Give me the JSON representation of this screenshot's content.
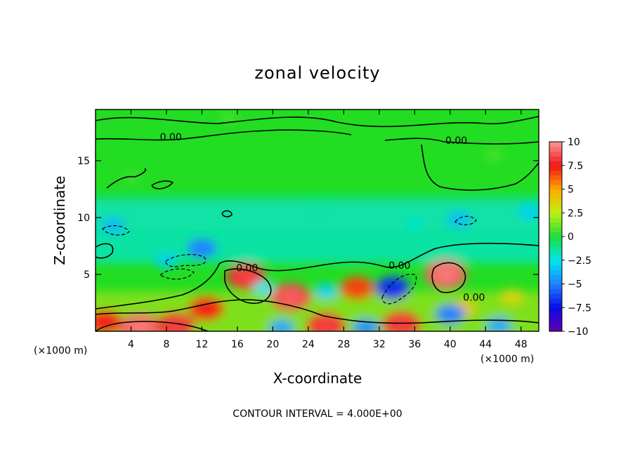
{
  "chart_data": {
    "type": "heatmap",
    "title": "zonal velocity",
    "xlabel": "X-coordinate",
    "ylabel": "Z-coordinate",
    "x_unit": "(×1000 m)",
    "caption": "CONTOUR INTERVAL = 4.000E+00",
    "xlim": [
      0,
      50
    ],
    "ylim": [
      0,
      19.5
    ],
    "x_ticks": [
      4,
      8,
      12,
      16,
      20,
      24,
      28,
      32,
      36,
      40,
      44,
      48
    ],
    "x_tick_labels": [
      "4",
      "8",
      "12",
      "16",
      "20",
      "24",
      "28",
      "32",
      "36",
      "40",
      "44",
      "48"
    ],
    "y_ticks": [
      5,
      10,
      15
    ],
    "y_tick_labels": [
      "5",
      "10",
      "15"
    ],
    "colorbar": {
      "min": -10,
      "max": 10,
      "tick_values": [
        10,
        7.5,
        5,
        2.5,
        0,
        -2.5,
        -5,
        -7.5,
        -10
      ],
      "tick_labels": [
        "10",
        "7.5",
        "5",
        "2.5",
        "0",
        "−2.5",
        "−5",
        "−7.5",
        "−10"
      ]
    },
    "contour_interval": 4,
    "contour_labels": [
      {
        "text": "0.00",
        "x": 8.5,
        "z": 17.1
      },
      {
        "text": "0.00",
        "x": 40.7,
        "z": 16.8
      },
      {
        "text": "0.00",
        "x": 17.1,
        "z": 5.6
      },
      {
        "text": "0.00",
        "x": 34.3,
        "z": 5.8
      },
      {
        "text": "0.00",
        "x": 42.7,
        "z": 3.0
      }
    ],
    "features": [
      {
        "x": 5.0,
        "z": 0.3,
        "value": 9.0
      },
      {
        "x": 9.0,
        "z": 0.5,
        "value": 8.0
      },
      {
        "x": 12.5,
        "z": 2.0,
        "value": 7.0
      },
      {
        "x": 1.0,
        "z": 0.8,
        "value": 7.0
      },
      {
        "x": 17.0,
        "z": 4.8,
        "value": 8.0
      },
      {
        "x": 22.0,
        "z": 3.0,
        "value": 8.5
      },
      {
        "x": 26.0,
        "z": 0.5,
        "value": 8.0
      },
      {
        "x": 29.5,
        "z": 3.8,
        "value": 6.5
      },
      {
        "x": 34.5,
        "z": 0.6,
        "value": 8.0
      },
      {
        "x": 39.5,
        "z": 5.0,
        "value": 9.0
      },
      {
        "x": 41.5,
        "z": 2.0,
        "value": 4.0
      },
      {
        "x": 47.0,
        "z": 3.0,
        "value": 3.5
      },
      {
        "x": 33.5,
        "z": 3.8,
        "value": -6.5
      },
      {
        "x": 12.0,
        "z": 7.3,
        "value": -5.0
      },
      {
        "x": 8.0,
        "z": 6.2,
        "value": -3.0
      },
      {
        "x": 2.0,
        "z": 9.3,
        "value": -3.5
      },
      {
        "x": 21.0,
        "z": 0.3,
        "value": -4.0
      },
      {
        "x": 30.5,
        "z": 0.3,
        "value": -4.5
      },
      {
        "x": 40.0,
        "z": 1.5,
        "value": -5.0
      },
      {
        "x": 45.5,
        "z": 0.5,
        "value": -4.0
      },
      {
        "x": 41.0,
        "z": 9.8,
        "value": -3.5
      },
      {
        "x": 49.0,
        "z": 10.5,
        "value": -3.0
      },
      {
        "x": 26.0,
        "z": 3.5,
        "value": -3.0
      },
      {
        "x": 19.0,
        "z": 3.8,
        "value": -2.5
      },
      {
        "x": 36.0,
        "z": 9.5,
        "value": -2.0
      },
      {
        "x": 25.0,
        "z": 10.5,
        "value": -1.5
      },
      {
        "x": 45.0,
        "z": 15.5,
        "value": 0.8
      },
      {
        "x": 4.0,
        "z": 13.5,
        "value": 0.6
      },
      {
        "x": 15.0,
        "z": 18.8,
        "value": 0.7
      }
    ],
    "colors": {
      "background": "#22dd22",
      "contour": "#000000"
    }
  }
}
